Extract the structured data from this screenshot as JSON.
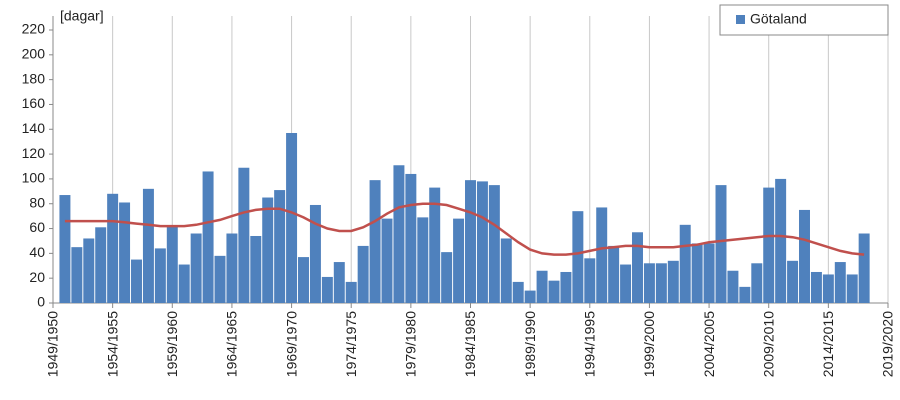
{
  "chart_data": {
    "type": "bar",
    "ylabel": "[dagar]",
    "x": [
      1950,
      1951,
      1952,
      1953,
      1954,
      1955,
      1956,
      1957,
      1958,
      1959,
      1960,
      1961,
      1962,
      1963,
      1964,
      1965,
      1966,
      1967,
      1968,
      1969,
      1970,
      1971,
      1972,
      1973,
      1974,
      1975,
      1976,
      1977,
      1978,
      1979,
      1980,
      1981,
      1982,
      1983,
      1984,
      1985,
      1986,
      1987,
      1988,
      1989,
      1990,
      1991,
      1992,
      1993,
      1994,
      1995,
      1996,
      1997,
      1998,
      1999,
      2000,
      2001,
      2002,
      2003,
      2004,
      2005,
      2006,
      2007,
      2008,
      2009,
      2010,
      2011,
      2012,
      2013,
      2014,
      2015,
      2016,
      2017
    ],
    "series": [
      {
        "name": "Götaland",
        "color": "#4f81bd",
        "values": [
          87,
          45,
          52,
          61,
          88,
          81,
          35,
          92,
          44,
          62,
          31,
          56,
          106,
          38,
          56,
          109,
          54,
          85,
          91,
          137,
          37,
          79,
          21,
          33,
          17,
          46,
          99,
          68,
          111,
          104,
          69,
          93,
          41,
          68,
          99,
          98,
          95,
          52,
          17,
          10,
          26,
          18,
          25,
          74,
          36,
          77,
          46,
          31,
          57,
          32,
          32,
          34,
          63,
          48,
          48,
          95,
          26,
          13,
          32,
          93,
          100,
          34,
          75,
          25,
          23,
          33,
          23,
          56
        ]
      }
    ],
    "trend": {
      "color": "#c0504d",
      "values": [
        66,
        66,
        66,
        66,
        66,
        65,
        64,
        63,
        62,
        62,
        62,
        63,
        65,
        67,
        70,
        73,
        75,
        76,
        76,
        73,
        69,
        64,
        60,
        58,
        58,
        61,
        66,
        72,
        77,
        79,
        80,
        80,
        79,
        76,
        73,
        69,
        63,
        56,
        49,
        43,
        40,
        39,
        39,
        40,
        42,
        44,
        45,
        46,
        46,
        45,
        45,
        45,
        46,
        47,
        49,
        50,
        51,
        52,
        53,
        54,
        54,
        53,
        51,
        48,
        45,
        42,
        40,
        39
      ]
    },
    "xlim": [
      1949,
      2019
    ],
    "xticks": [
      {
        "value": 1949,
        "label": "1949/1950"
      },
      {
        "value": 1954,
        "label": "1954/1955"
      },
      {
        "value": 1959,
        "label": "1959/1960"
      },
      {
        "value": 1964,
        "label": "1964/1965"
      },
      {
        "value": 1969,
        "label": "1969/1970"
      },
      {
        "value": 1974,
        "label": "1974/1975"
      },
      {
        "value": 1979,
        "label": "1979/1980"
      },
      {
        "value": 1984,
        "label": "1984/1985"
      },
      {
        "value": 1989,
        "label": "1989/1990"
      },
      {
        "value": 1994,
        "label": "1994/1995"
      },
      {
        "value": 1999,
        "label": "1999/2000"
      },
      {
        "value": 2004,
        "label": "2004/2005"
      },
      {
        "value": 2009,
        "label": "2009/2010"
      },
      {
        "value": 2014,
        "label": "2014/2015"
      },
      {
        "value": 2019,
        "label": "2019/2020"
      }
    ],
    "ylim": [
      0,
      220
    ],
    "yticks": [
      0,
      20,
      40,
      60,
      80,
      100,
      120,
      140,
      160,
      180,
      200,
      220
    ],
    "grid": "x",
    "legend": "top-right"
  }
}
